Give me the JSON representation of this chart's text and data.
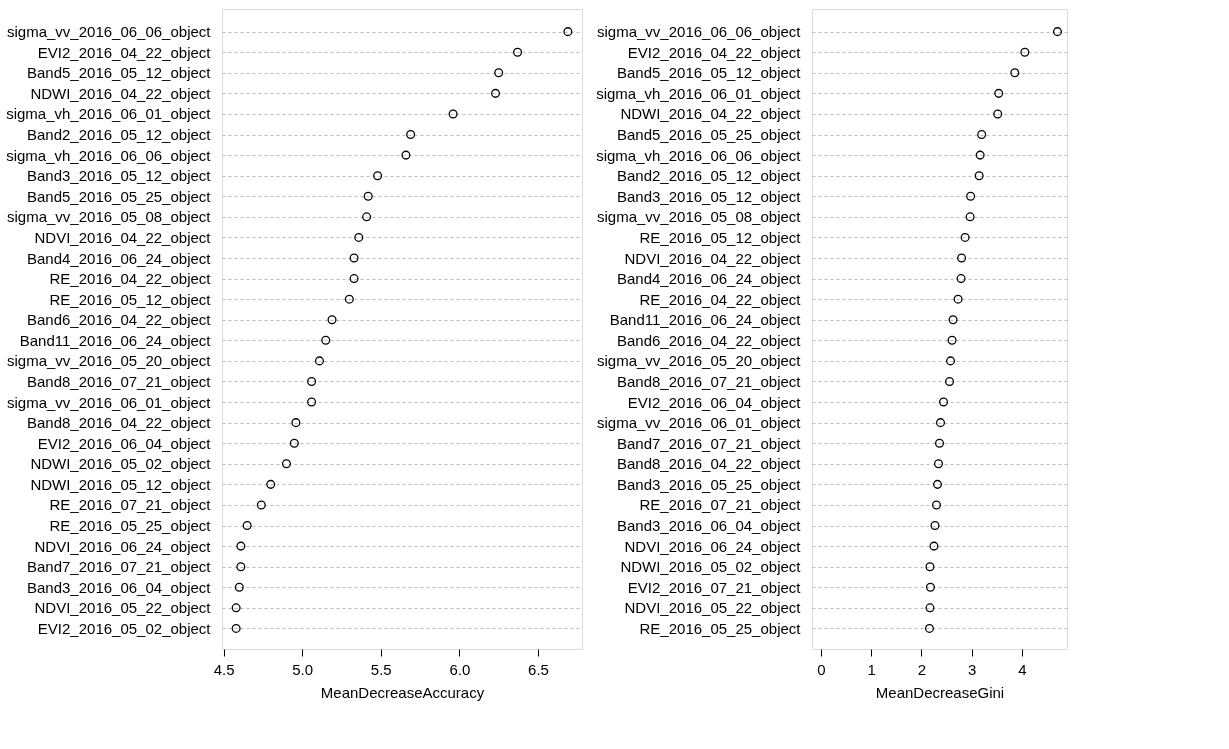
{
  "chart_data": [
    {
      "type": "scatter",
      "orientation": "horizontal",
      "xlabel": "MeanDecreaseAccuracy",
      "categories": [
        "sigma_vv_2016_06_06_object",
        "EVI2_2016_04_22_object",
        "Band5_2016_05_12_object",
        "NDWI_2016_04_22_object",
        "sigma_vh_2016_06_01_object",
        "Band2_2016_05_12_object",
        "sigma_vh_2016_06_06_object",
        "Band3_2016_05_12_object",
        "Band5_2016_05_25_object",
        "sigma_vv_2016_05_08_object",
        "NDVI_2016_04_22_object",
        "Band4_2016_06_24_object",
        "RE_2016_04_22_object",
        "RE_2016_05_12_object",
        "Band6_2016_04_22_object",
        "Band11_2016_06_24_object",
        "sigma_vv_2016_05_20_object",
        "Band8_2016_07_21_object",
        "sigma_vv_2016_06_01_object",
        "Band8_2016_04_22_object",
        "EVI2_2016_06_04_object",
        "NDWI_2016_05_02_object",
        "NDWI_2016_05_12_object",
        "RE_2016_07_21_object",
        "RE_2016_05_25_object",
        "NDVI_2016_06_24_object",
        "Band7_2016_07_21_object",
        "Band3_2016_06_04_object",
        "NDVI_2016_05_22_object",
        "EVI2_2016_05_02_object"
      ],
      "series": [
        {
          "color": "#000000",
          "values": [
            6.69,
            6.37,
            6.25,
            6.23,
            5.96,
            5.69,
            5.66,
            5.48,
            5.42,
            5.41,
            5.36,
            5.33,
            5.33,
            5.3,
            5.19,
            5.15,
            5.11,
            5.06,
            5.06,
            4.96,
            4.95,
            4.9,
            4.8,
            4.74,
            4.65,
            4.61,
            4.61,
            4.6,
            4.58,
            4.58
          ]
        }
      ],
      "xlim": [
        4.49,
        6.78
      ],
      "xticks": [
        {
          "value": 4.5,
          "label": "4.5"
        },
        {
          "value": 5,
          "label": "5.0"
        },
        {
          "value": 5.5,
          "label": "5.5"
        },
        {
          "value": 6,
          "label": "6.0"
        },
        {
          "value": 6.5,
          "label": "6.5"
        }
      ],
      "grid": "y",
      "marker": "circle"
    },
    {
      "type": "scatter",
      "orientation": "horizontal",
      "xlabel": "MeanDecreaseGini",
      "categories": [
        "sigma_vv_2016_06_06_object",
        "EVI2_2016_04_22_object",
        "Band5_2016_05_12_object",
        "sigma_vh_2016_06_01_object",
        "NDWI_2016_04_22_object",
        "Band5_2016_05_25_object",
        "sigma_vh_2016_06_06_object",
        "Band2_2016_05_12_object",
        "Band3_2016_05_12_object",
        "sigma_vv_2016_05_08_object",
        "RE_2016_05_12_object",
        "NDVI_2016_04_22_object",
        "Band4_2016_06_24_object",
        "RE_2016_04_22_object",
        "Band11_2016_06_24_object",
        "Band6_2016_04_22_object",
        "sigma_vv_2016_05_20_object",
        "Band8_2016_07_21_object",
        "EVI2_2016_06_04_object",
        "sigma_vv_2016_06_01_object",
        "Band7_2016_07_21_object",
        "Band8_2016_04_22_object",
        "Band3_2016_05_25_object",
        "RE_2016_07_21_object",
        "Band3_2016_06_04_object",
        "NDVI_2016_06_24_object",
        "NDWI_2016_05_02_object",
        "EVI2_2016_07_21_object",
        "NDVI_2016_05_22_object",
        "RE_2016_05_25_object"
      ],
      "series": [
        {
          "color": "#000000",
          "values": [
            4.71,
            4.06,
            3.86,
            3.54,
            3.52,
            3.2,
            3.17,
            3.15,
            2.98,
            2.97,
            2.87,
            2.8,
            2.79,
            2.73,
            2.63,
            2.61,
            2.58,
            2.56,
            2.44,
            2.38,
            2.36,
            2.34,
            2.32,
            2.3,
            2.27,
            2.25,
            2.17,
            2.18,
            2.17,
            2.16
          ]
        }
      ],
      "xlim": [
        -0.18,
        4.9
      ],
      "xticks": [
        0,
        1,
        2,
        3,
        4
      ],
      "grid": "y",
      "marker": "circle"
    }
  ]
}
